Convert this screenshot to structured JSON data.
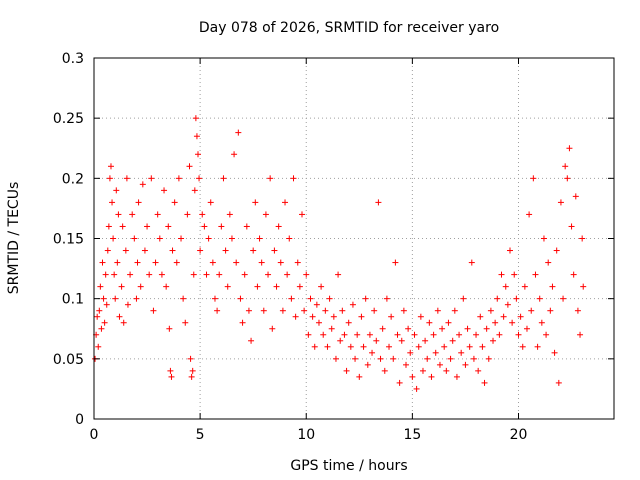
{
  "chart_data": {
    "type": "scatter",
    "title": "Day 078 of 2026, SRMTID for receiver yaro",
    "xlabel": "GPS time / hours",
    "ylabel": "SRMTID / TECUs",
    "xlim": [
      0,
      24.5
    ],
    "ylim": [
      0,
      0.3
    ],
    "grid": true,
    "x_ticks": [
      0,
      5,
      10,
      15,
      20
    ],
    "x_tick_labels": [
      "0",
      "5",
      "10",
      "15",
      "20"
    ],
    "y_ticks": [
      0,
      0.05,
      0.1,
      0.15,
      0.2,
      0.25,
      0.3
    ],
    "y_tick_labels": [
      "0",
      "0.05",
      "0.1",
      "0.15",
      "0.2",
      "0.25",
      "0.3"
    ],
    "marker": "plus",
    "color": "#ff0000",
    "series": [
      {
        "name": "SRMTID",
        "points": [
          [
            0.05,
            0.05
          ],
          [
            0.1,
            0.07
          ],
          [
            0.15,
            0.085
          ],
          [
            0.2,
            0.06
          ],
          [
            0.25,
            0.09
          ],
          [
            0.3,
            0.11
          ],
          [
            0.35,
            0.075
          ],
          [
            0.4,
            0.13
          ],
          [
            0.45,
            0.1
          ],
          [
            0.5,
            0.08
          ],
          [
            0.55,
            0.12
          ],
          [
            0.6,
            0.095
          ],
          [
            0.65,
            0.14
          ],
          [
            0.7,
            0.16
          ],
          [
            0.75,
            0.2
          ],
          [
            0.8,
            0.21
          ],
          [
            0.85,
            0.18
          ],
          [
            0.9,
            0.15
          ],
          [
            0.95,
            0.12
          ],
          [
            1.0,
            0.1
          ],
          [
            1.05,
            0.19
          ],
          [
            1.1,
            0.13
          ],
          [
            1.15,
            0.17
          ],
          [
            1.2,
            0.085
          ],
          [
            1.3,
            0.11
          ],
          [
            1.35,
            0.16
          ],
          [
            1.4,
            0.08
          ],
          [
            1.5,
            0.14
          ],
          [
            1.55,
            0.2
          ],
          [
            1.6,
            0.095
          ],
          [
            1.7,
            0.12
          ],
          [
            1.8,
            0.17
          ],
          [
            1.9,
            0.15
          ],
          [
            2.0,
            0.1
          ],
          [
            2.05,
            0.13
          ],
          [
            2.1,
            0.18
          ],
          [
            2.2,
            0.11
          ],
          [
            2.3,
            0.195
          ],
          [
            2.4,
            0.14
          ],
          [
            2.5,
            0.16
          ],
          [
            2.6,
            0.12
          ],
          [
            2.7,
            0.2
          ],
          [
            2.8,
            0.09
          ],
          [
            2.9,
            0.13
          ],
          [
            3.0,
            0.17
          ],
          [
            3.1,
            0.15
          ],
          [
            3.2,
            0.12
          ],
          [
            3.3,
            0.19
          ],
          [
            3.4,
            0.11
          ],
          [
            3.5,
            0.16
          ],
          [
            3.55,
            0.075
          ],
          [
            3.6,
            0.04
          ],
          [
            3.65,
            0.035
          ],
          [
            3.7,
            0.14
          ],
          [
            3.8,
            0.18
          ],
          [
            3.9,
            0.13
          ],
          [
            4.0,
            0.2
          ],
          [
            4.1,
            0.15
          ],
          [
            4.2,
            0.1
          ],
          [
            4.3,
            0.08
          ],
          [
            4.4,
            0.17
          ],
          [
            4.5,
            0.21
          ],
          [
            4.55,
            0.05
          ],
          [
            4.6,
            0.035
          ],
          [
            4.65,
            0.04
          ],
          [
            4.7,
            0.12
          ],
          [
            4.75,
            0.19
          ],
          [
            4.8,
            0.25
          ],
          [
            4.85,
            0.235
          ],
          [
            4.9,
            0.22
          ],
          [
            4.95,
            0.2
          ],
          [
            5.0,
            0.14
          ],
          [
            5.1,
            0.17
          ],
          [
            5.2,
            0.16
          ],
          [
            5.3,
            0.12
          ],
          [
            5.4,
            0.15
          ],
          [
            5.5,
            0.18
          ],
          [
            5.6,
            0.13
          ],
          [
            5.7,
            0.1
          ],
          [
            5.8,
            0.09
          ],
          [
            5.9,
            0.12
          ],
          [
            6.0,
            0.16
          ],
          [
            6.1,
            0.2
          ],
          [
            6.2,
            0.14
          ],
          [
            6.3,
            0.11
          ],
          [
            6.4,
            0.17
          ],
          [
            6.5,
            0.15
          ],
          [
            6.6,
            0.22
          ],
          [
            6.7,
            0.13
          ],
          [
            6.8,
            0.238
          ],
          [
            6.9,
            0.1
          ],
          [
            7.0,
            0.08
          ],
          [
            7.1,
            0.12
          ],
          [
            7.2,
            0.16
          ],
          [
            7.3,
            0.09
          ],
          [
            7.4,
            0.065
          ],
          [
            7.5,
            0.14
          ],
          [
            7.6,
            0.18
          ],
          [
            7.7,
            0.11
          ],
          [
            7.8,
            0.15
          ],
          [
            7.9,
            0.13
          ],
          [
            8.0,
            0.09
          ],
          [
            8.1,
            0.17
          ],
          [
            8.2,
            0.12
          ],
          [
            8.3,
            0.2
          ],
          [
            8.4,
            0.075
          ],
          [
            8.5,
            0.14
          ],
          [
            8.6,
            0.11
          ],
          [
            8.7,
            0.16
          ],
          [
            8.8,
            0.13
          ],
          [
            8.9,
            0.09
          ],
          [
            9.0,
            0.18
          ],
          [
            9.1,
            0.12
          ],
          [
            9.2,
            0.15
          ],
          [
            9.3,
            0.1
          ],
          [
            9.4,
            0.2
          ],
          [
            9.5,
            0.085
          ],
          [
            9.6,
            0.13
          ],
          [
            9.7,
            0.11
          ],
          [
            9.8,
            0.17
          ],
          [
            9.9,
            0.09
          ],
          [
            10.0,
            0.12
          ],
          [
            10.1,
            0.07
          ],
          [
            10.2,
            0.1
          ],
          [
            10.3,
            0.085
          ],
          [
            10.4,
            0.06
          ],
          [
            10.5,
            0.095
          ],
          [
            10.6,
            0.08
          ],
          [
            10.7,
            0.11
          ],
          [
            10.8,
            0.07
          ],
          [
            10.9,
            0.09
          ],
          [
            11.0,
            0.06
          ],
          [
            11.1,
            0.1
          ],
          [
            11.2,
            0.075
          ],
          [
            11.3,
            0.085
          ],
          [
            11.4,
            0.05
          ],
          [
            11.5,
            0.12
          ],
          [
            11.6,
            0.065
          ],
          [
            11.7,
            0.09
          ],
          [
            11.8,
            0.07
          ],
          [
            11.9,
            0.04
          ],
          [
            12.0,
            0.08
          ],
          [
            12.1,
            0.06
          ],
          [
            12.2,
            0.095
          ],
          [
            12.3,
            0.05
          ],
          [
            12.4,
            0.07
          ],
          [
            12.5,
            0.035
          ],
          [
            12.6,
            0.085
          ],
          [
            12.7,
            0.06
          ],
          [
            12.8,
            0.1
          ],
          [
            12.9,
            0.045
          ],
          [
            13.0,
            0.07
          ],
          [
            13.1,
            0.055
          ],
          [
            13.2,
            0.09
          ],
          [
            13.3,
            0.065
          ],
          [
            13.4,
            0.18
          ],
          [
            13.5,
            0.05
          ],
          [
            13.6,
            0.075
          ],
          [
            13.7,
            0.04
          ],
          [
            13.8,
            0.1
          ],
          [
            13.9,
            0.06
          ],
          [
            14.0,
            0.085
          ],
          [
            14.1,
            0.05
          ],
          [
            14.2,
            0.13
          ],
          [
            14.3,
            0.07
          ],
          [
            14.4,
            0.03
          ],
          [
            14.5,
            0.065
          ],
          [
            14.6,
            0.09
          ],
          [
            14.7,
            0.045
          ],
          [
            14.8,
            0.075
          ],
          [
            14.9,
            0.055
          ],
          [
            15.0,
            0.035
          ],
          [
            15.1,
            0.07
          ],
          [
            15.2,
            0.025
          ],
          [
            15.3,
            0.06
          ],
          [
            15.4,
            0.085
          ],
          [
            15.5,
            0.04
          ],
          [
            15.6,
            0.065
          ],
          [
            15.7,
            0.05
          ],
          [
            15.8,
            0.08
          ],
          [
            15.9,
            0.035
          ],
          [
            16.0,
            0.07
          ],
          [
            16.1,
            0.055
          ],
          [
            16.2,
            0.09
          ],
          [
            16.3,
            0.045
          ],
          [
            16.4,
            0.075
          ],
          [
            16.5,
            0.06
          ],
          [
            16.6,
            0.04
          ],
          [
            16.7,
            0.08
          ],
          [
            16.8,
            0.05
          ],
          [
            16.9,
            0.065
          ],
          [
            17.0,
            0.09
          ],
          [
            17.1,
            0.035
          ],
          [
            17.2,
            0.07
          ],
          [
            17.3,
            0.055
          ],
          [
            17.4,
            0.1
          ],
          [
            17.5,
            0.045
          ],
          [
            17.6,
            0.075
          ],
          [
            17.7,
            0.06
          ],
          [
            17.8,
            0.13
          ],
          [
            17.9,
            0.05
          ],
          [
            18.0,
            0.07
          ],
          [
            18.1,
            0.04
          ],
          [
            18.2,
            0.085
          ],
          [
            18.3,
            0.06
          ],
          [
            18.4,
            0.03
          ],
          [
            18.5,
            0.075
          ],
          [
            18.6,
            0.05
          ],
          [
            18.7,
            0.09
          ],
          [
            18.8,
            0.065
          ],
          [
            18.9,
            0.08
          ],
          [
            19.0,
            0.1
          ],
          [
            19.1,
            0.07
          ],
          [
            19.2,
            0.12
          ],
          [
            19.3,
            0.085
          ],
          [
            19.4,
            0.11
          ],
          [
            19.5,
            0.095
          ],
          [
            19.6,
            0.14
          ],
          [
            19.7,
            0.08
          ],
          [
            19.8,
            0.12
          ],
          [
            19.9,
            0.1
          ],
          [
            20.0,
            0.07
          ],
          [
            20.1,
            0.085
          ],
          [
            20.2,
            0.06
          ],
          [
            20.3,
            0.11
          ],
          [
            20.4,
            0.075
          ],
          [
            20.5,
            0.17
          ],
          [
            20.6,
            0.09
          ],
          [
            20.7,
            0.2
          ],
          [
            20.8,
            0.12
          ],
          [
            20.9,
            0.06
          ],
          [
            21.0,
            0.1
          ],
          [
            21.1,
            0.08
          ],
          [
            21.2,
            0.15
          ],
          [
            21.3,
            0.07
          ],
          [
            21.4,
            0.13
          ],
          [
            21.5,
            0.09
          ],
          [
            21.6,
            0.11
          ],
          [
            21.7,
            0.055
          ],
          [
            21.8,
            0.14
          ],
          [
            21.9,
            0.03
          ],
          [
            22.0,
            0.18
          ],
          [
            22.1,
            0.1
          ],
          [
            22.2,
            0.21
          ],
          [
            22.3,
            0.2
          ],
          [
            22.4,
            0.225
          ],
          [
            22.5,
            0.16
          ],
          [
            22.6,
            0.12
          ],
          [
            22.7,
            0.185
          ],
          [
            22.8,
            0.09
          ],
          [
            22.9,
            0.07
          ],
          [
            23.0,
            0.15
          ],
          [
            23.05,
            0.11
          ]
        ]
      }
    ]
  }
}
